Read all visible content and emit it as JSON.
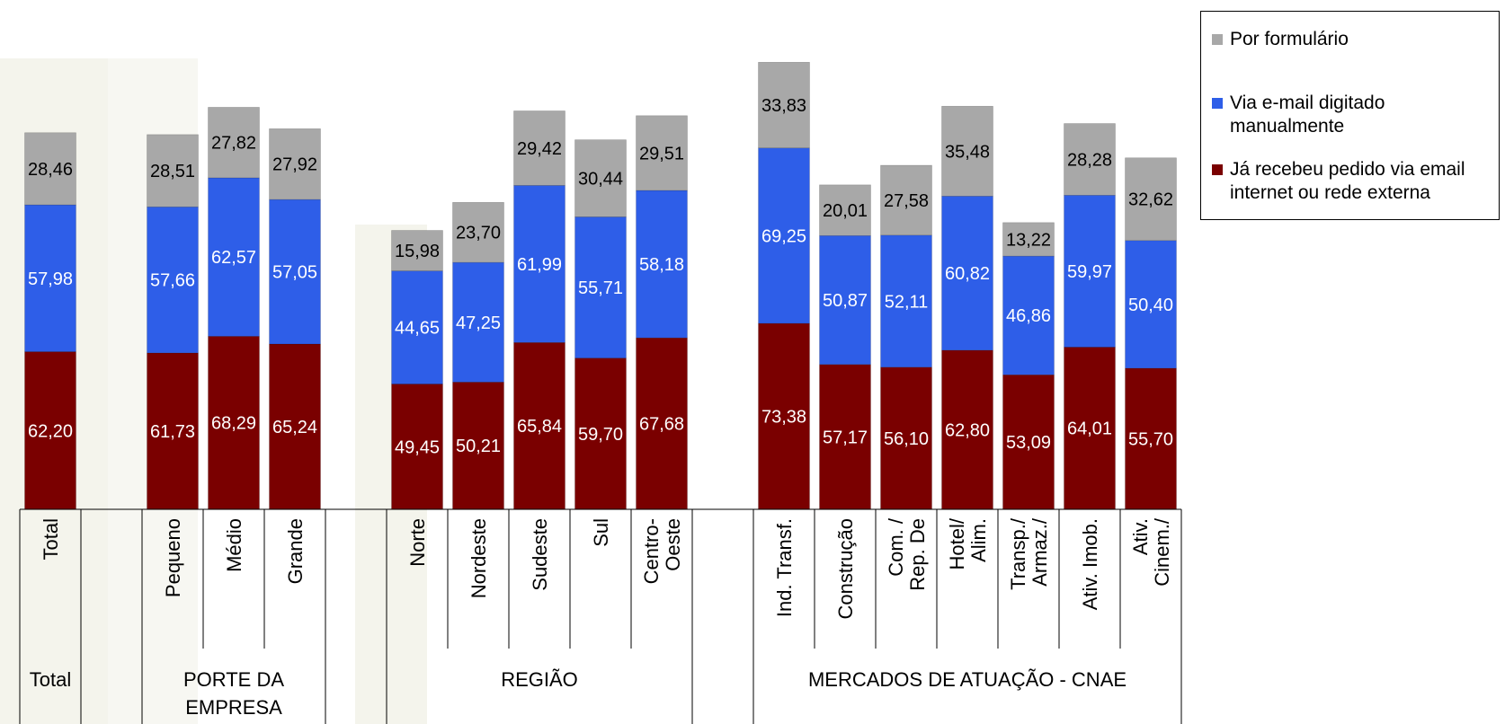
{
  "chart_data": {
    "type": "bar",
    "stacked": true,
    "colors": {
      "formulario": "#a8a8a8",
      "email": "#2e5ee8",
      "pedido": "#7a0000"
    },
    "series": [
      {
        "name": "Já recebeu pedido via email internet ou rede externa",
        "key": "pedido"
      },
      {
        "name": "Via e-mail digitado manualmente",
        "key": "email"
      },
      {
        "name": "Por formulário",
        "key": "formulario"
      }
    ],
    "categories": [
      {
        "label": [
          "Total"
        ],
        "pedido": 62.2,
        "email": 57.98,
        "formulario": 28.46
      },
      {
        "label": [
          "Pequeno"
        ],
        "pedido": 61.73,
        "email": 57.66,
        "formulario": 28.51
      },
      {
        "label": [
          "Médio"
        ],
        "pedido": 68.29,
        "email": 62.57,
        "formulario": 27.82
      },
      {
        "label": [
          "Grande"
        ],
        "pedido": 65.24,
        "email": 57.05,
        "formulario": 27.92
      },
      {
        "label": [
          "Norte"
        ],
        "pedido": 49.45,
        "email": 44.65,
        "formulario": 15.98
      },
      {
        "label": [
          "Nordeste"
        ],
        "pedido": 50.21,
        "email": 47.25,
        "formulario": 23.7
      },
      {
        "label": [
          "Sudeste"
        ],
        "pedido": 65.84,
        "email": 61.99,
        "formulario": 29.42
      },
      {
        "label": [
          "Sul"
        ],
        "pedido": 59.7,
        "email": 55.71,
        "formulario": 30.44
      },
      {
        "label": [
          "Centro-",
          "Oeste"
        ],
        "pedido": 67.68,
        "email": 58.18,
        "formulario": 29.51
      },
      {
        "label": [
          "Ind. Transf."
        ],
        "pedido": 73.38,
        "email": 69.25,
        "formulario": 33.83
      },
      {
        "label": [
          "Construção"
        ],
        "pedido": 57.17,
        "email": 50.87,
        "formulario": 20.01
      },
      {
        "label": [
          "Com. /",
          "Rep. De"
        ],
        "pedido": 56.1,
        "email": 52.11,
        "formulario": 27.58
      },
      {
        "label": [
          "Hotel/",
          "Alim."
        ],
        "pedido": 62.8,
        "email": 60.82,
        "formulario": 35.48
      },
      {
        "label": [
          "Transp./",
          "Armaz./"
        ],
        "pedido": 53.09,
        "email": 46.86,
        "formulario": 13.22
      },
      {
        "label": [
          "Ativ. Imob."
        ],
        "pedido": 64.01,
        "email": 59.97,
        "formulario": 28.28
      },
      {
        "label": [
          "Ativ.",
          "Cinem./"
        ],
        "pedido": 55.7,
        "email": 50.4,
        "formulario": 32.62
      }
    ],
    "groups": [
      {
        "label": [
          "Total"
        ]
      },
      {
        "label": [
          "PORTE DA",
          "EMPRESA"
        ]
      },
      {
        "label": [
          "REGIÃO"
        ]
      },
      {
        "label": [
          "MERCADOS DE ATUAÇÃO - CNAE"
        ]
      }
    ],
    "legend": {
      "placement": "top-right",
      "items": [
        {
          "key": "formulario",
          "text": [
            "Por formulário"
          ]
        },
        {
          "key": "email",
          "text": [
            "Via e-mail digitado",
            "manualmente"
          ]
        },
        {
          "key": "pedido",
          "text": [
            "Já recebeu pedido via email",
            "internet ou rede externa"
          ]
        }
      ]
    },
    "ylim": [
      0,
      195
    ],
    "grid": false
  }
}
